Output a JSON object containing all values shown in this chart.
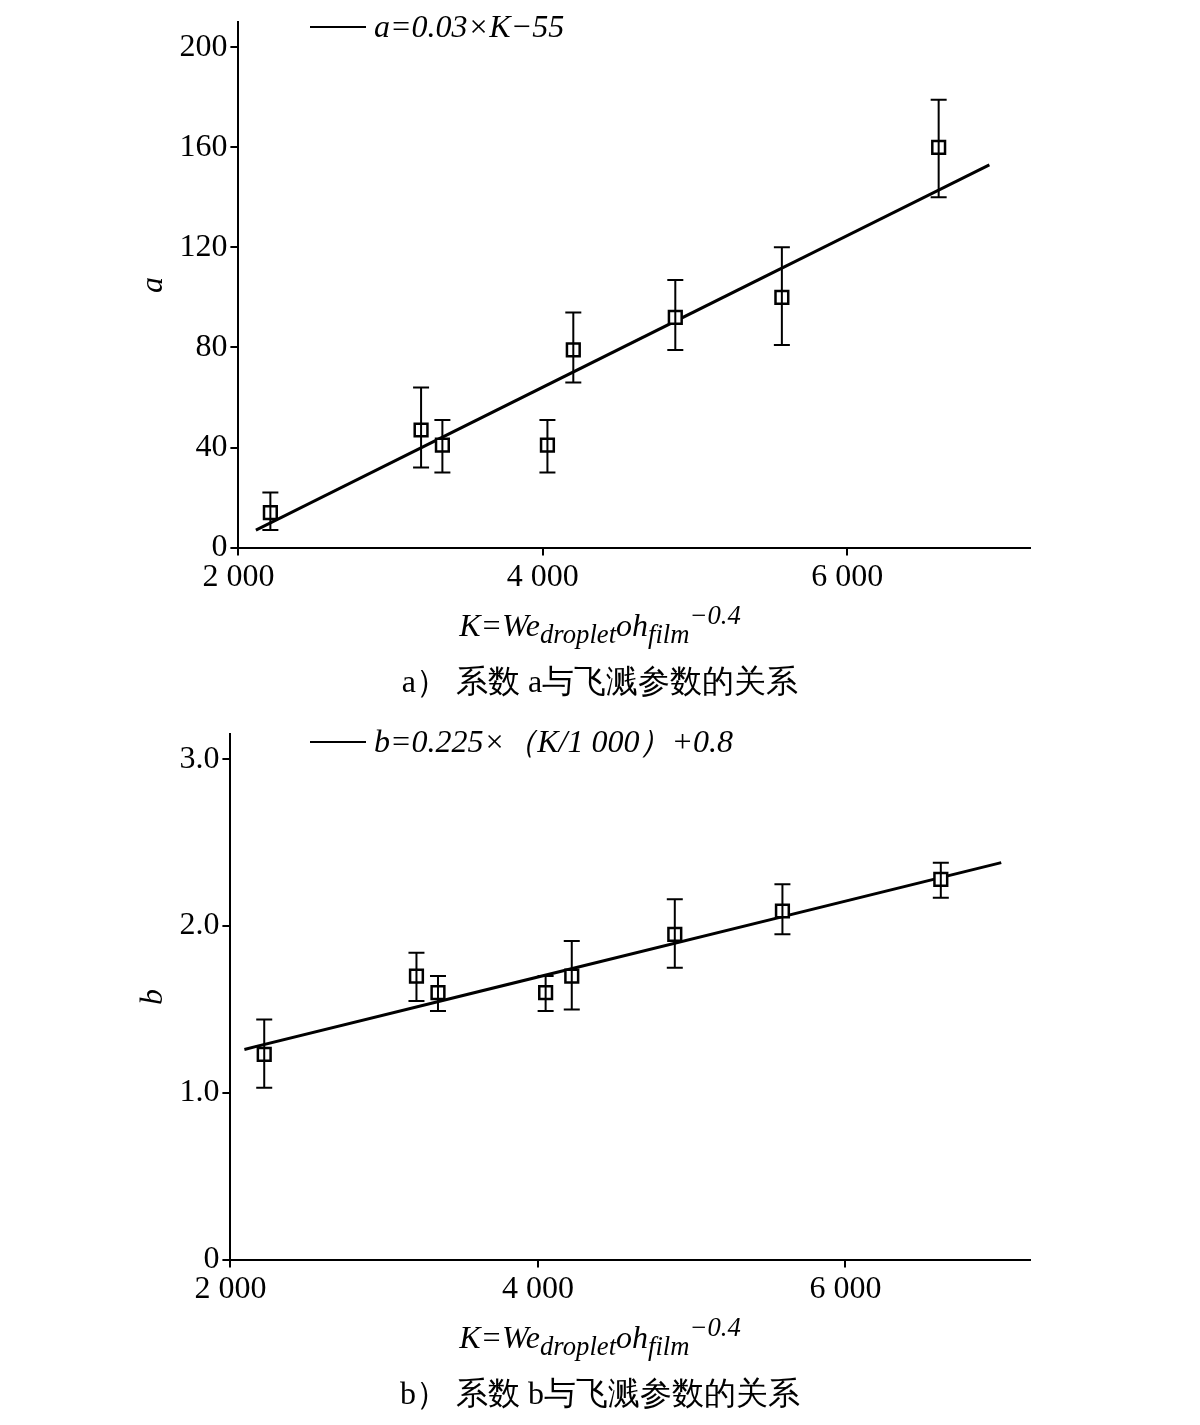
{
  "chart_data": [
    {
      "type": "scatter",
      "title": "a） 系数 a与飞溅参数的关系",
      "xlabel": "K=We$_{droplet}$oh$_{film}$$^{−0.4}$",
      "ylabel": "a",
      "xlim": [
        2000,
        7200
      ],
      "xticks": [
        {
          "value": 2000,
          "label": "2 000"
        },
        {
          "value": 4000,
          "label": "4 000"
        },
        {
          "value": 6000,
          "label": "6 000"
        }
      ],
      "ylim": [
        0,
        210
      ],
      "yticks": [
        0,
        40,
        80,
        120,
        160,
        200
      ],
      "grid": false,
      "legend": "top left",
      "series": [
        {
          "color": "#000000",
          "marker": "square",
          "x": [
            2210,
            3200,
            3340,
            4030,
            4200,
            4870,
            5570,
            6600
          ],
          "values": [
            14,
            47,
            41,
            41,
            79,
            92,
            100,
            160
          ],
          "errors": [
            [
              7,
              22
            ],
            [
              32,
              64
            ],
            [
              30,
              51
            ],
            [
              30,
              51
            ],
            [
              66,
              94
            ],
            [
              79,
              107
            ],
            [
              81,
              120
            ],
            [
              140,
              179
            ]
          ]
        },
        {
          "type": "line",
          "name": "a=0.03×K−55",
          "color": "#000000",
          "marker": "none",
          "line_style": "solid",
          "x": [
            2115,
            6933
          ],
          "values": [
            7,
            153
          ]
        }
      ]
    },
    {
      "type": "scatter",
      "title": "b） 系数 b与飞溅参数的关系",
      "xlabel": "K=We$_{droplet}$oh$_{film}$$^{−0.4}$",
      "ylabel": "b",
      "xlim": [
        2000,
        7200
      ],
      "xticks": [
        {
          "value": 2000,
          "label": "2 000"
        },
        {
          "value": 4000,
          "label": "4 000"
        },
        {
          "value": 6000,
          "label": "6 000"
        }
      ],
      "ylim": [
        0,
        3.15
      ],
      "yticks": [
        {
          "value": 0,
          "label": "0"
        },
        {
          "value": 1,
          "label": "1.0"
        },
        {
          "value": 2,
          "label": "2.0"
        },
        {
          "value": 3,
          "label": "3.0"
        }
      ],
      "grid": false,
      "legend": "top left",
      "series": [
        {
          "color": "#000000",
          "marker": "square",
          "x": [
            2220,
            3210,
            3350,
            4050,
            4220,
            4890,
            5590,
            6620
          ],
          "values": [
            1.23,
            1.7,
            1.6,
            1.6,
            1.7,
            1.95,
            2.09,
            2.28
          ],
          "errors": [
            [
              1.03,
              1.44
            ],
            [
              1.55,
              1.84
            ],
            [
              1.49,
              1.7
            ],
            [
              1.49,
              1.7
            ],
            [
              1.5,
              1.91
            ],
            [
              1.75,
              2.16
            ],
            [
              1.95,
              2.25
            ],
            [
              2.17,
              2.38
            ]
          ]
        },
        {
          "type": "line",
          "name": "b=0.225×（K/1 000）+0.8",
          "color": "#000000",
          "marker": "none",
          "line_style": "solid",
          "x": [
            2091,
            7013
          ],
          "values": [
            1.26,
            2.38
          ]
        }
      ]
    }
  ]
}
